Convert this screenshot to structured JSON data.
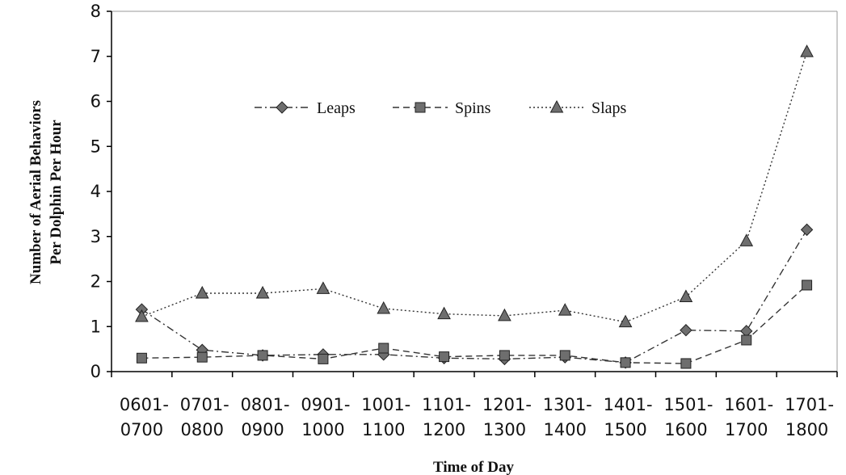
{
  "chart_data": {
    "type": "line",
    "categories": [
      [
        "0601-",
        "0700"
      ],
      [
        "0701-",
        "0800"
      ],
      [
        "0801-",
        "0900"
      ],
      [
        "0901-",
        "1000"
      ],
      [
        "1001-",
        "1100"
      ],
      [
        "1101-",
        "1200"
      ],
      [
        "1201-",
        "1300"
      ],
      [
        "1301-",
        "1400"
      ],
      [
        "1401-",
        "1500"
      ],
      [
        "1501-",
        "1600"
      ],
      [
        "1601-",
        "1700"
      ],
      [
        "1701-",
        "1800"
      ]
    ],
    "series": [
      {
        "name": "Leaps",
        "marker": "diamond",
        "dash": "dash-dot",
        "values": [
          1.38,
          0.48,
          0.36,
          0.38,
          0.38,
          0.3,
          0.28,
          0.32,
          0.2,
          0.92,
          0.9,
          3.15
        ]
      },
      {
        "name": "Spins",
        "marker": "square",
        "dash": "dashed",
        "values": [
          0.3,
          0.32,
          0.36,
          0.28,
          0.52,
          0.33,
          0.36,
          0.36,
          0.2,
          0.18,
          0.7,
          1.92
        ]
      },
      {
        "name": "Slaps",
        "marker": "triangle",
        "dash": "dotted",
        "values": [
          1.22,
          1.74,
          1.74,
          1.84,
          1.4,
          1.28,
          1.24,
          1.36,
          1.1,
          1.66,
          2.9,
          7.1
        ]
      }
    ],
    "ylim": [
      0,
      8
    ],
    "yticks": [
      "0",
      "1",
      "2",
      "3",
      "4",
      "5",
      "6",
      "7",
      "8"
    ],
    "xlabel": "Time of Day",
    "ylabel": [
      "Number of Aerial Behaviors",
      "Per Dolphin Per Hour"
    ],
    "grid": false,
    "legend_position": "top-center",
    "colors": {
      "axis": "#000000",
      "series": "#333333",
      "marker_fill": "#6e6e6e"
    }
  }
}
